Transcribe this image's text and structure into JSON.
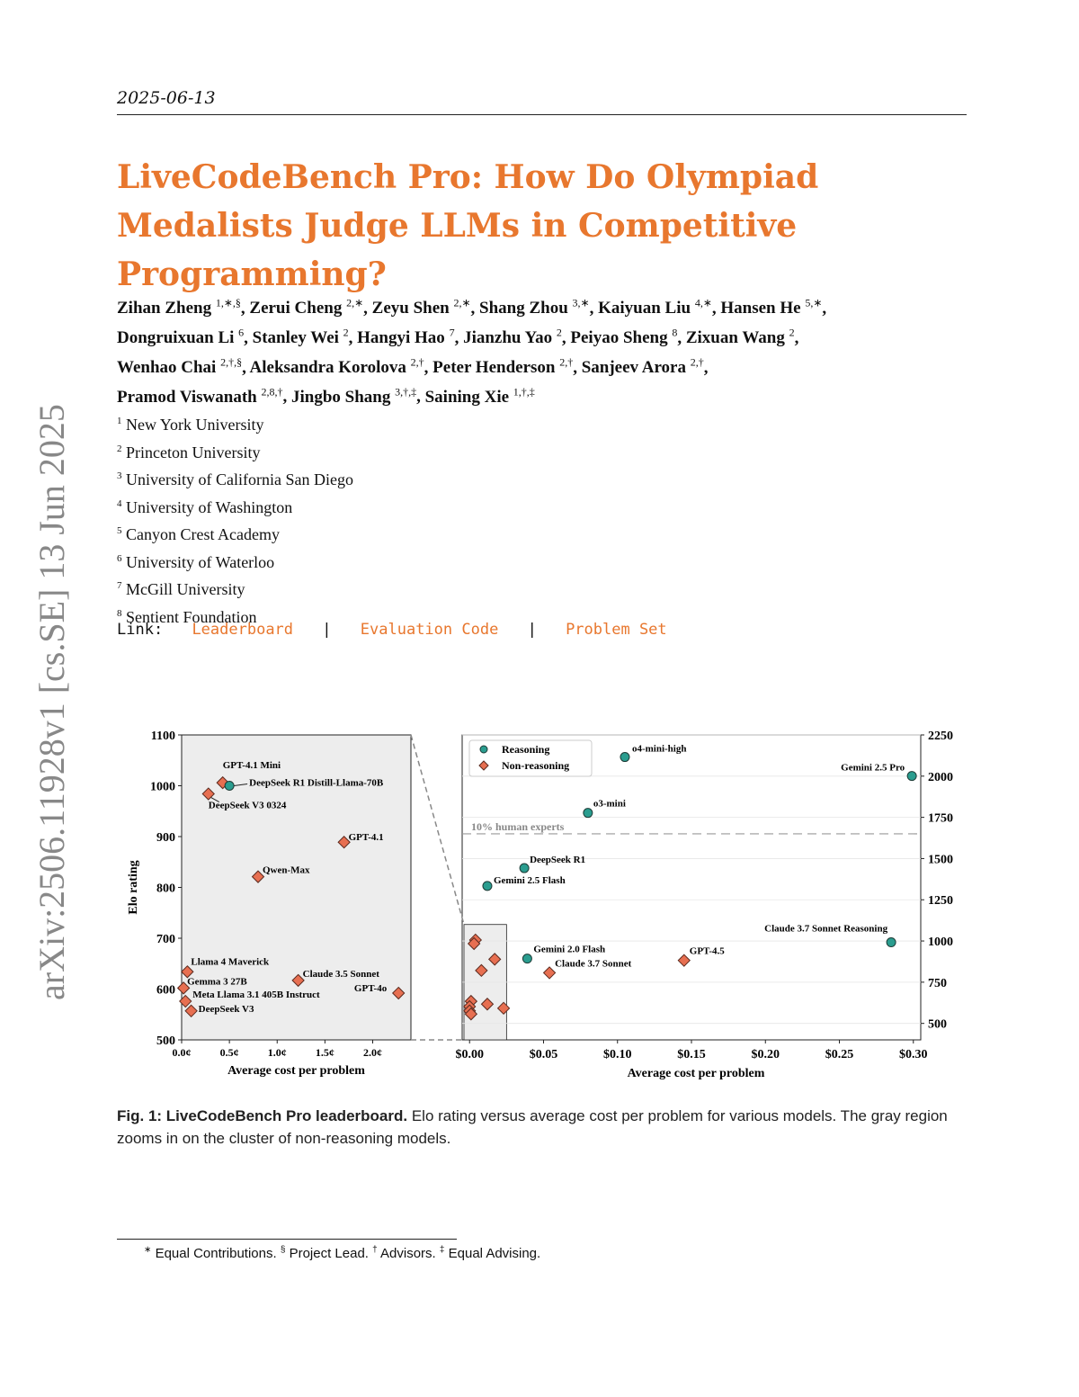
{
  "header": {
    "date": "2025-06-13"
  },
  "title": "LiveCodeBench Pro: How Do Olympiad Medalists Judge LLMs in Competitive Programming?",
  "authors": [
    {
      "name": "Zihan Zheng",
      "sup": "1,∗,§"
    },
    {
      "name": "Zerui Cheng",
      "sup": "2,∗"
    },
    {
      "name": "Zeyu Shen",
      "sup": "2,∗"
    },
    {
      "name": "Shang Zhou",
      "sup": "3,∗"
    },
    {
      "name": "Kaiyuan Liu",
      "sup": "4,∗"
    },
    {
      "name": "Hansen He",
      "sup": "5,∗"
    },
    {
      "name": "Dongruixuan Li",
      "sup": "6"
    },
    {
      "name": "Stanley Wei",
      "sup": "2"
    },
    {
      "name": "Hangyi Hao",
      "sup": "7"
    },
    {
      "name": "Jianzhu Yao",
      "sup": "2"
    },
    {
      "name": "Peiyao Sheng",
      "sup": "8"
    },
    {
      "name": "Zixuan Wang",
      "sup": "2"
    },
    {
      "name": "Wenhao Chai",
      "sup": "2,†,§"
    },
    {
      "name": "Aleksandra Korolova",
      "sup": "2,†"
    },
    {
      "name": "Peter Henderson",
      "sup": "2,†"
    },
    {
      "name": "Sanjeev Arora",
      "sup": "2,†"
    },
    {
      "name": "Pramod Viswanath",
      "sup": "2,8,†"
    },
    {
      "name": "Jingbo Shang",
      "sup": "3,†,‡"
    },
    {
      "name": "Saining Xie",
      "sup": "1,†,‡"
    }
  ],
  "affiliations": [
    {
      "num": "1",
      "name": "New York University"
    },
    {
      "num": "2",
      "name": "Princeton University"
    },
    {
      "num": "3",
      "name": "University of California San Diego"
    },
    {
      "num": "4",
      "name": "University of Washington"
    },
    {
      "num": "5",
      "name": "Canyon Crest Academy"
    },
    {
      "num": "6",
      "name": "University of Waterloo"
    },
    {
      "num": "7",
      "name": "McGill University"
    },
    {
      "num": "8",
      "name": "Sentient Foundation"
    }
  ],
  "links": {
    "label": "Link:",
    "leaderboard": "Leaderboard",
    "evaluation_code": "Evaluation Code",
    "problem_set": "Problem Set",
    "separator": "|"
  },
  "arxiv_stamp": "arXiv:2506.11928v1  [cs.SE]  13 Jun 2025",
  "caption": {
    "label": "Fig. 1:",
    "bold": "LiveCodeBench Pro leaderboard.",
    "text": "Elo rating versus average cost per problem for various models. The gray region zooms in on the cluster of non-reasoning models."
  },
  "footnote": {
    "sym1": "∗",
    "t1": "Equal Contributions.",
    "sym2": "§",
    "t2": "Project Lead.",
    "sym3": "†",
    "t3": "Advisors.",
    "sym4": "‡",
    "t4": "Equal Advising."
  },
  "colors": {
    "accent": "#e8772e",
    "reasoning": "#2a9d8f",
    "non_reasoning": "#e76f51",
    "zoom_bg": "#ededed"
  },
  "chart_data": [
    {
      "type": "scatter",
      "panel": "zoom",
      "xlabel": "Average cost per problem",
      "ylabel": "Elo rating",
      "xlim": [
        0,
        2.4
      ],
      "ylim": [
        500,
        1100
      ],
      "xticks": [
        0.0,
        0.5,
        1.0,
        1.5,
        2.0
      ],
      "xtick_labels": [
        "0.0¢",
        "0.5¢",
        "1.0¢",
        "1.5¢",
        "2.0¢"
      ],
      "yticks": [
        500,
        600,
        700,
        800,
        900,
        1000,
        1100
      ],
      "points": [
        {
          "label": "GPT-4.1 Mini",
          "x": 0.43,
          "y": 1006,
          "kind": "non-reasoning"
        },
        {
          "label": "DeepSeek R1 Distill-Llama-70B",
          "x": 0.5,
          "y": 1000,
          "kind": "reasoning"
        },
        {
          "label": "DeepSeek V3 0324",
          "x": 0.28,
          "y": 984,
          "kind": "non-reasoning"
        },
        {
          "label": "GPT-4.1",
          "x": 1.7,
          "y": 889,
          "kind": "non-reasoning"
        },
        {
          "label": "Qwen-Max",
          "x": 0.8,
          "y": 821,
          "kind": "non-reasoning"
        },
        {
          "label": "Llama 4 Maverick",
          "x": 0.06,
          "y": 634,
          "kind": "non-reasoning"
        },
        {
          "label": "Claude 3.5 Sonnet",
          "x": 1.22,
          "y": 617,
          "kind": "non-reasoning"
        },
        {
          "label": "Gemma 3 27B",
          "x": 0.02,
          "y": 602,
          "kind": "non-reasoning"
        },
        {
          "label": "GPT-4o",
          "x": 2.27,
          "y": 592,
          "kind": "non-reasoning"
        },
        {
          "label": "Meta Llama 3.1 405B Instruct",
          "x": 0.04,
          "y": 576,
          "kind": "non-reasoning"
        },
        {
          "label": "DeepSeek V3",
          "x": 0.1,
          "y": 557,
          "kind": "non-reasoning"
        }
      ]
    },
    {
      "type": "scatter",
      "panel": "main",
      "xlabel": "Average cost per problem",
      "ylabel": "",
      "xlim": [
        -0.005,
        0.305
      ],
      "ylim": [
        400,
        2250
      ],
      "xticks": [
        0.0,
        0.05,
        0.1,
        0.15,
        0.2,
        0.25,
        0.3
      ],
      "xtick_labels": [
        "$0.00",
        "$0.05",
        "$0.10",
        "$0.15",
        "$0.20",
        "$0.25",
        "$0.30"
      ],
      "yticks": [
        500,
        750,
        1000,
        1250,
        1500,
        1750,
        2000,
        2250
      ],
      "legend": {
        "position": "top-left",
        "entries": [
          "Reasoning",
          "Non-reasoning"
        ]
      },
      "reference_line": {
        "label": "10% human experts",
        "y": 1650
      },
      "points": [
        {
          "label": "o4-mini-high",
          "x": 0.105,
          "y": 2116,
          "kind": "reasoning"
        },
        {
          "label": "Gemini 2.5 Pro",
          "x": 0.299,
          "y": 2001,
          "kind": "reasoning"
        },
        {
          "label": "o3-mini",
          "x": 0.08,
          "y": 1777,
          "kind": "reasoning"
        },
        {
          "label": "DeepSeek R1",
          "x": 0.037,
          "y": 1442,
          "kind": "reasoning"
        },
        {
          "label": "Gemini 2.5 Flash",
          "x": 0.012,
          "y": 1334,
          "kind": "reasoning"
        },
        {
          "label": "Claude 3.7 Sonnet Reasoning",
          "x": 0.285,
          "y": 992,
          "kind": "reasoning"
        },
        {
          "label": "Gemini 2.0 Flash",
          "x": 0.039,
          "y": 893,
          "kind": "reasoning"
        },
        {
          "label": "GPT-4.5",
          "x": 0.145,
          "y": 882,
          "kind": "non-reasoning"
        },
        {
          "label": "Claude 3.7 Sonnet",
          "x": 0.054,
          "y": 807,
          "kind": "non-reasoning"
        },
        {
          "label": "",
          "x": 0.004,
          "y": 1006,
          "kind": "non-reasoning"
        },
        {
          "label": "",
          "x": 0.003,
          "y": 984,
          "kind": "non-reasoning"
        },
        {
          "label": "",
          "x": 0.017,
          "y": 889,
          "kind": "non-reasoning"
        },
        {
          "label": "",
          "x": 0.008,
          "y": 821,
          "kind": "non-reasoning"
        },
        {
          "label": "",
          "x": 0.001,
          "y": 634,
          "kind": "non-reasoning"
        },
        {
          "label": "",
          "x": 0.012,
          "y": 617,
          "kind": "non-reasoning"
        },
        {
          "label": "",
          "x": 0.0,
          "y": 602,
          "kind": "non-reasoning"
        },
        {
          "label": "",
          "x": 0.023,
          "y": 592,
          "kind": "non-reasoning"
        },
        {
          "label": "",
          "x": 0.0,
          "y": 576,
          "kind": "non-reasoning"
        },
        {
          "label": "",
          "x": 0.001,
          "y": 557,
          "kind": "non-reasoning"
        }
      ]
    }
  ]
}
